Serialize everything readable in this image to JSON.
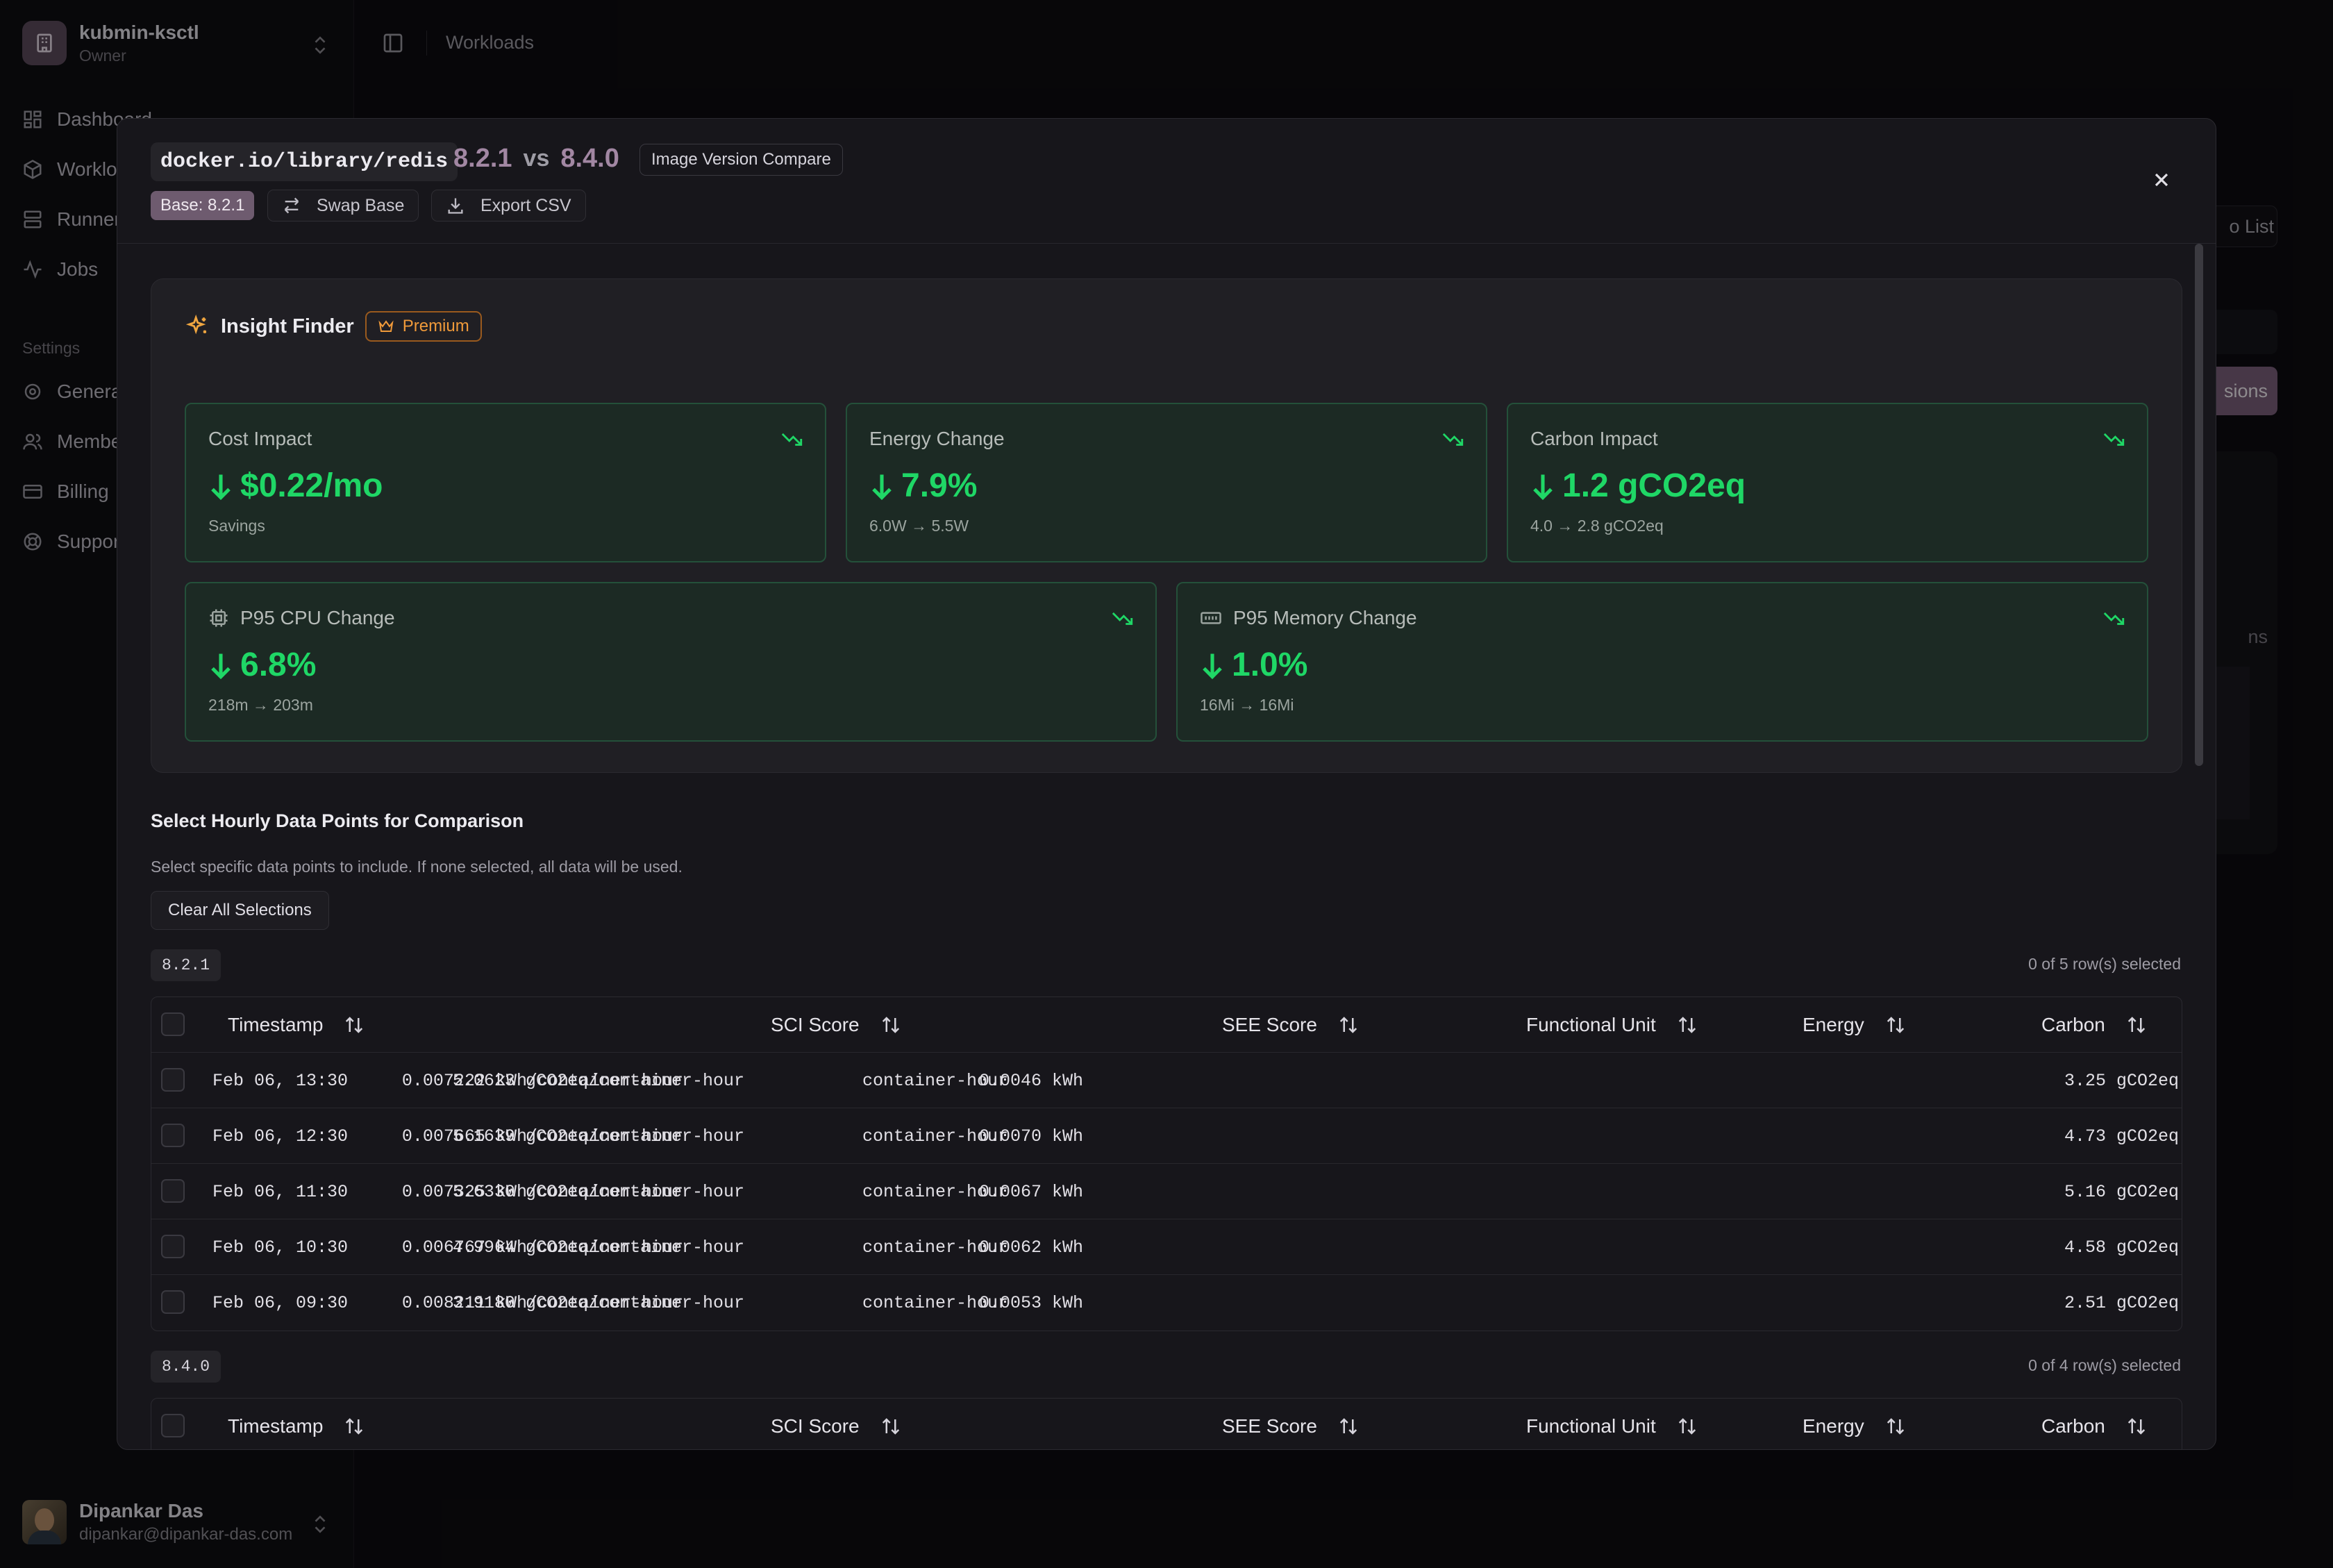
{
  "sidebar": {
    "org": {
      "name": "kubmin-ksctl",
      "role": "Owner"
    },
    "nav": [
      {
        "label": "Dashboard",
        "icon": "dashboard-icon"
      },
      {
        "label": "Workloads",
        "icon": "box-icon"
      },
      {
        "label": "Runners",
        "icon": "server-icon"
      },
      {
        "label": "Jobs",
        "icon": "activity-icon"
      }
    ],
    "settings_label": "Settings",
    "settings": [
      {
        "label": "General",
        "icon": "gear-icon"
      },
      {
        "label": "Members",
        "icon": "users-icon"
      },
      {
        "label": "Billing",
        "icon": "credit-card-icon"
      },
      {
        "label": "Support",
        "icon": "lifebuoy-icon"
      }
    ],
    "user": {
      "name": "Dipankar Das",
      "email": "dipankar@dipankar-das.com"
    }
  },
  "topbar": {
    "breadcrumb": "Workloads"
  },
  "background": {
    "list_btn": "o List",
    "versions_btn": "sions",
    "ns_text": "ns"
  },
  "modal": {
    "image": "docker.io/library/redis",
    "base_version": "8.2.1",
    "vs": "vs",
    "compare_version": "8.4.0",
    "badge": "Image Version Compare",
    "base_label": "Base: 8.2.1",
    "swap_label": "Swap Base",
    "export_label": "Export CSV",
    "insight": {
      "title": "Insight Finder",
      "premium": "Premium",
      "cards": [
        {
          "label": "Cost Impact",
          "value": "$0.22/mo",
          "sub": "Savings"
        },
        {
          "label": "Energy Change",
          "value": "7.9%",
          "sub": "6.0W → 5.5W"
        },
        {
          "label": "Carbon Impact",
          "value": "1.2 gCO2eq",
          "sub": "4.0 → 2.8 gCO2eq"
        },
        {
          "label": "P95 CPU Change",
          "value": "6.8%",
          "sub": "218m → 203m"
        },
        {
          "label": "P95 Memory Change",
          "value": "1.0%",
          "sub": "16Mi → 16Mi"
        }
      ]
    },
    "select": {
      "title": "Select Hourly Data Points for Comparison",
      "desc": "Select specific data points to include. If none selected, all data will be used.",
      "clear_label": "Clear All Selections"
    },
    "columns": [
      "Timestamp",
      "SCI Score",
      "SEE Score",
      "Functional Unit",
      "Energy",
      "Carbon"
    ],
    "tables": [
      {
        "version": "8.2.1",
        "selected": "0 of 5 row(s) selected",
        "rows": [
          [
            "Feb 06, 13:30",
            "5.0623 gCO2eq/container-hour",
            "0.007222 kWh/container-hour",
            "container-hour",
            "0.0046 kWh",
            "3.25 gCO2eq"
          ],
          [
            "Feb 06, 12:30",
            "5.1639 gCO2eq/container-hour",
            "0.007665 kWh/container-hour",
            "container-hour",
            "0.0070 kWh",
            "4.73 gCO2eq"
          ],
          [
            "Feb 06, 11:30",
            "5.6330 gCO2eq/container-hour",
            "0.007325 kWh/container-hour",
            "container-hour",
            "0.0067 kWh",
            "5.16 gCO2eq"
          ],
          [
            "Feb 06, 10:30",
            "4.9964 gCO2eq/container-hour",
            "0.006767 kWh/container-hour",
            "container-hour",
            "0.0062 kWh",
            "4.58 gCO2eq"
          ],
          [
            "Feb 06, 09:30",
            "3.9180 gCO2eq/container-hour",
            "0.008211 kWh/container-hour",
            "container-hour",
            "0.0053 kWh",
            "2.51 gCO2eq"
          ]
        ]
      },
      {
        "version": "8.4.0",
        "selected": "0 of 4 row(s) selected",
        "rows": []
      }
    ]
  }
}
